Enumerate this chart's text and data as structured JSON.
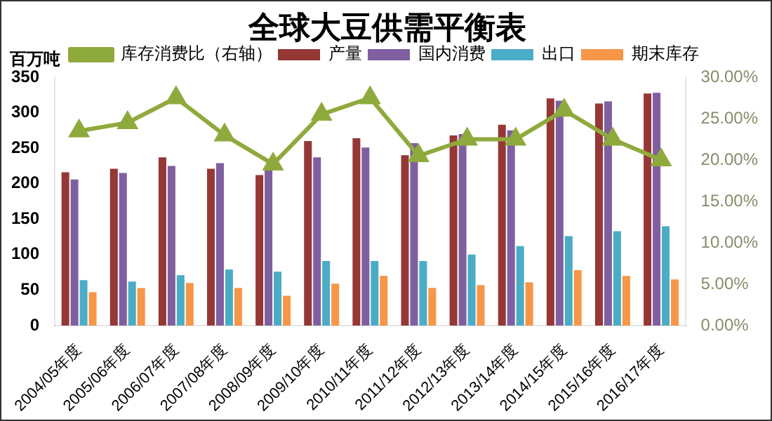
{
  "chart_data": {
    "type": "bar",
    "title": "全球大豆供需平衡表",
    "ylabel": "百万吨",
    "categories": [
      "2004/05年度",
      "2005/06年度",
      "2006/07年度",
      "2007/08年度",
      "2008/09年度",
      "2009/10年度",
      "2010/11年度",
      "2011/12年度",
      "2012/13年度",
      "2013/14年度",
      "2014/15年度",
      "2015/16年度",
      "2016/17年度"
    ],
    "series": [
      {
        "name": "产量",
        "color": "#953735",
        "values": [
          216,
          221,
          237,
          221,
          212,
          260,
          264,
          240,
          268,
          283,
          320,
          313,
          327
        ]
      },
      {
        "name": "国内消费",
        "color": "#7f5fa0",
        "values": [
          206,
          215,
          225,
          229,
          221,
          237,
          251,
          257,
          270,
          275,
          317,
          316,
          328
        ]
      },
      {
        "name": "出口",
        "color": "#4bacc6",
        "values": [
          64,
          62,
          71,
          79,
          76,
          91,
          91,
          91,
          100,
          112,
          126,
          133,
          140
        ]
      },
      {
        "name": "期末库存",
        "color": "#f79646",
        "values": [
          47,
          53,
          60,
          53,
          42,
          59,
          70,
          53,
          57,
          61,
          78,
          70,
          65
        ]
      },
      {
        "name": "库存消费比（右轴）",
        "type": "line",
        "axis": "y2",
        "color": "#8faa3c",
        "marker": "triangle",
        "values": [
          23.5,
          24.5,
          27.5,
          23,
          19.5,
          25.5,
          27.5,
          20.5,
          22.5,
          22.5,
          26,
          22.5,
          20
        ]
      }
    ],
    "ylim": [
      0,
      350
    ],
    "yticks": [
      0,
      50,
      100,
      150,
      200,
      250,
      300,
      350
    ],
    "y2lim": [
      0,
      30
    ],
    "y2ticks": [
      {
        "value": 0,
        "label": "0.00%"
      },
      {
        "value": 5,
        "label": "5.00%"
      },
      {
        "value": 10,
        "label": "10.00%"
      },
      {
        "value": 15,
        "label": "15.00%"
      },
      {
        "value": 20,
        "label": "20.00%"
      },
      {
        "value": 25,
        "label": "25.00%"
      },
      {
        "value": 30,
        "label": "30.00%"
      }
    ],
    "grid": false,
    "legend": "top"
  }
}
